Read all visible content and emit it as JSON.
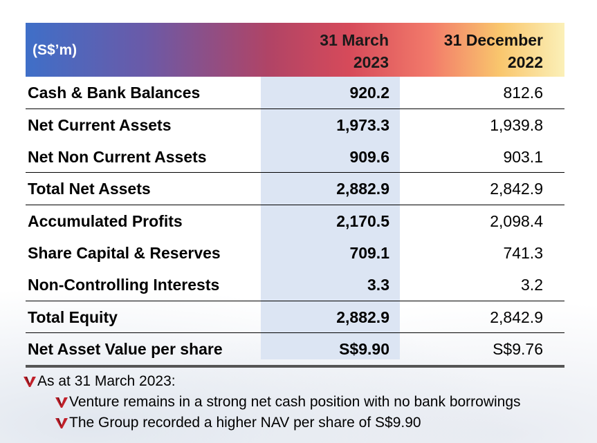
{
  "table": {
    "unit_label": "(S$’m)",
    "col1_header_line1": "31 March",
    "col1_header_line2": "2023",
    "col2_header_line1": "31 December",
    "col2_header_line2": "2022",
    "rows": [
      {
        "label": "Cash & Bank Balances",
        "v2023": "920.2",
        "v2022": "812.6"
      },
      {
        "label": "Net Current Assets",
        "v2023": "1,973.3",
        "v2022": "1,939.8"
      },
      {
        "label": "Net Non Current Assets",
        "v2023": "909.6",
        "v2022": "903.1"
      },
      {
        "label": "Total Net Assets",
        "v2023": "2,882.9",
        "v2022": "2,842.9"
      },
      {
        "label": "Accumulated Profits",
        "v2023": "2,170.5",
        "v2022": "2,098.4"
      },
      {
        "label": "Share Capital & Reserves",
        "v2023": "709.1",
        "v2022": "741.3"
      },
      {
        "label": "Non-Controlling Interests",
        "v2023": "3.3",
        "v2022": "3.2"
      },
      {
        "label": "Total Equity",
        "v2023": "2,882.9",
        "v2022": "2,842.9"
      },
      {
        "label": "Net Asset Value per share",
        "v2023": "S$9.90",
        "v2022": "S$9.76"
      }
    ]
  },
  "notes": {
    "heading": "As at 31 March 2023:",
    "points": [
      "Venture remains in a strong net cash position with no bank borrowings",
      "The Group recorded a higher NAV per share of S$9.90"
    ]
  },
  "colors": {
    "highlight_column": "#dce5f3",
    "bullet_mark": "#c0202a"
  },
  "icons": {
    "bullet": "v-logo-bullet-icon"
  }
}
